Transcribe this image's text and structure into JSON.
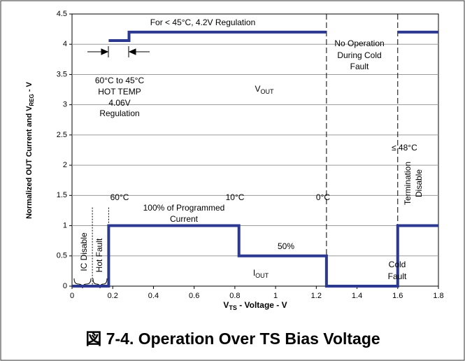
{
  "chart_data": {
    "type": "line",
    "title": "図 7-4. Operation Over TS Bias Voltage",
    "xlabel": {
      "text": "V",
      "sub": "TS",
      "tail": " - Voltage  - V"
    },
    "ylabel": {
      "text": "Normalized OUT Current and V",
      "sub": "REG",
      "tail": " - V"
    },
    "xlim": [
      0,
      1.8
    ],
    "ylim": [
      0,
      4.5
    ],
    "xticks": [
      0,
      0.2,
      0.4,
      0.6,
      0.8,
      1,
      1.2,
      1.4,
      1.6,
      1.8
    ],
    "yticks": [
      0,
      0.5,
      1,
      1.5,
      2,
      2.5,
      3,
      3.5,
      4,
      4.5
    ],
    "grid": true,
    "series": [
      {
        "color": "#2b3990",
        "x": [
          0.18,
          0.28,
          0.28,
          1.25,
          null,
          1.6,
          1.8
        ],
        "values": [
          4.06,
          4.06,
          4.2,
          4.2,
          null,
          4.2,
          4.2
        ]
      },
      {
        "color": "#2b3990",
        "x": [
          0,
          0.18,
          0.18,
          0.82,
          0.82,
          1.25,
          1.25,
          1.6,
          1.6,
          1.8
        ],
        "values": [
          0,
          0,
          1,
          1,
          0.5,
          0.5,
          0,
          0,
          1,
          1
        ]
      }
    ],
    "reference_lines": [
      {
        "x": 0.1,
        "style": "dotted"
      },
      {
        "x": 0.18,
        "style": "dotted"
      },
      {
        "x": 1.25,
        "style": "dashed"
      },
      {
        "x": 1.6,
        "style": "dashed"
      }
    ],
    "annotations": [
      "For < 45°C, 4.2V Regulation",
      "No Operation",
      "During Cold",
      "Fault",
      "60°C to 45°C",
      "HOT TEMP",
      "4.06V",
      "Regulation",
      {
        "text": "V",
        "sub": "OUT"
      },
      "≤ 48°C",
      "60°C",
      "10°C",
      "0°C",
      "100% of Programmed",
      "Current",
      "50%",
      "Cold",
      "Fault",
      {
        "text": "I",
        "sub": "OUT"
      },
      "Termination",
      "Disable",
      "IC Disable",
      "Hot Fault"
    ]
  }
}
